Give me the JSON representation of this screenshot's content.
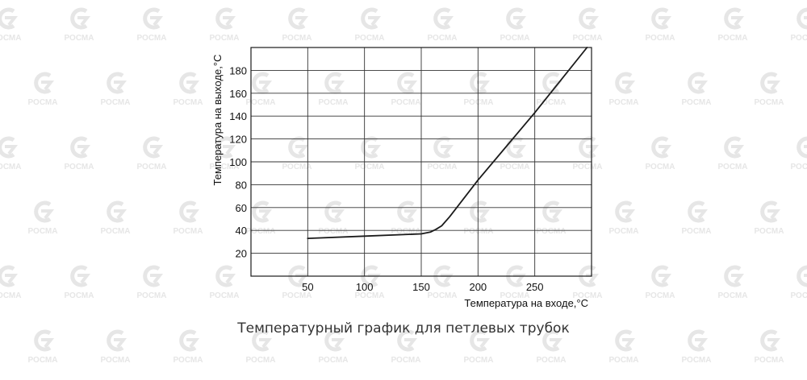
{
  "watermark": {
    "text": "РОСМА",
    "icon": "rosma-logo-icon",
    "color": "#e6e6e6"
  },
  "caption": "Температурный график для петлевых трубок",
  "chart_data": {
    "type": "line",
    "title": "",
    "xlabel": "Температура на входе,°C",
    "ylabel": "Температура на выходе,°C",
    "xlim": [
      0,
      300
    ],
    "ylim": [
      0,
      200
    ],
    "xticks": [
      50,
      100,
      150,
      200,
      250
    ],
    "xtick_labels": [
      "50",
      "100",
      "150",
      "200",
      "250"
    ],
    "yticks": [
      20,
      40,
      60,
      80,
      100,
      120,
      140,
      160,
      180
    ],
    "ytick_labels": [
      "20",
      "40",
      "60",
      "80",
      "100",
      "120",
      "140",
      "160",
      "180"
    ],
    "grid": true,
    "line_color": "#1a1a1a",
    "series": [
      {
        "x": [
          50,
          100,
          150,
          158,
          163,
          168,
          175,
          200,
          250,
          296
        ],
        "y": [
          33,
          35,
          37,
          38.5,
          41,
          44,
          52,
          84,
          143,
          200
        ]
      }
    ]
  }
}
